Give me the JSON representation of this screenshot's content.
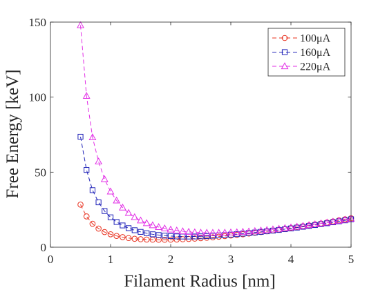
{
  "chart_data": {
    "type": "line",
    "title": "",
    "xlabel": "Filament Radius [nm]",
    "ylabel": "Free Energy [keV]",
    "xlim": [
      0,
      5
    ],
    "ylim": [
      0,
      150
    ],
    "xticks": [
      0,
      1,
      2,
      3,
      4,
      5
    ],
    "xtick_labels": [
      "0",
      "1",
      "2",
      "3",
      "4",
      "5"
    ],
    "yticks": [
      0,
      50,
      100,
      150
    ],
    "ytick_labels": [
      "0",
      "50",
      "100",
      "150"
    ],
    "grid": false,
    "legend_position": "top-right",
    "x": [
      0.5,
      0.6,
      0.7,
      0.8,
      0.9,
      1.0,
      1.1,
      1.2,
      1.3,
      1.4,
      1.5,
      1.6,
      1.7,
      1.8,
      1.9,
      2.0,
      2.1,
      2.2,
      2.3,
      2.4,
      2.5,
      2.6,
      2.7,
      2.8,
      2.9,
      3.0,
      3.1,
      3.2,
      3.3,
      3.4,
      3.5,
      3.6,
      3.7,
      3.8,
      3.9,
      4.0,
      4.1,
      4.2,
      4.3,
      4.4,
      4.5,
      4.6,
      4.7,
      4.8,
      4.9,
      5.0
    ],
    "series": [
      {
        "name": "100μA",
        "color": "#e8301e",
        "marker": "circle",
        "values": [
          28.4,
          20.5,
          15.6,
          12.4,
          10.1,
          8.6,
          7.5,
          6.7,
          6.1,
          5.6,
          5.3,
          5.1,
          5.0,
          4.95,
          4.95,
          5.0,
          5.1,
          5.3,
          5.5,
          5.7,
          6.0,
          6.3,
          6.6,
          7.0,
          7.4,
          7.8,
          8.2,
          8.6,
          9.1,
          9.6,
          10.1,
          10.6,
          11.1,
          11.6,
          12.2,
          12.8,
          13.4,
          14.0,
          14.6,
          15.2,
          15.8,
          16.5,
          17.2,
          17.9,
          18.6,
          19.3
        ]
      },
      {
        "name": "160μA",
        "color": "#1f22b8",
        "marker": "square",
        "values": [
          73.6,
          51.5,
          38.0,
          29.9,
          24.1,
          19.9,
          16.8,
          14.5,
          12.7,
          11.3,
          10.2,
          9.3,
          8.6,
          8.1,
          7.7,
          7.4,
          7.2,
          7.1,
          7.1,
          7.15,
          7.25,
          7.4,
          7.6,
          7.85,
          8.1,
          8.4,
          8.7,
          9.05,
          9.4,
          9.8,
          10.2,
          10.6,
          11.05,
          11.5,
          12.0,
          12.5,
          13.05,
          13.6,
          14.15,
          14.75,
          15.35,
          15.95,
          16.6,
          17.25,
          17.9,
          18.6
        ]
      },
      {
        "name": "220μA",
        "color": "#e22ee6",
        "marker": "triangle",
        "values": [
          147.9,
          100.8,
          73.2,
          57.1,
          45.3,
          37.1,
          31.1,
          26.4,
          22.8,
          20.0,
          17.8,
          16.0,
          14.6,
          13.4,
          12.5,
          11.7,
          11.1,
          10.6,
          10.2,
          9.9,
          9.7,
          9.6,
          9.55,
          9.6,
          9.65,
          9.8,
          9.95,
          10.2,
          10.45,
          10.75,
          11.1,
          11.45,
          11.85,
          12.25,
          12.7,
          13.15,
          13.65,
          14.15,
          14.7,
          15.25,
          15.8,
          16.4,
          17.0,
          17.65,
          18.3,
          18.95
        ]
      }
    ]
  }
}
